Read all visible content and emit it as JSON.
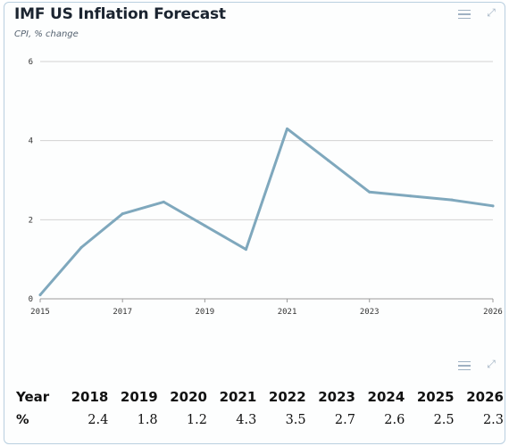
{
  "header": {
    "title": "IMF US Inflation Forecast",
    "subtitle": "CPI, % change"
  },
  "icons": {
    "top_menu": "hamburger-menu-icon",
    "top_expand": "expand-icon",
    "table_menu": "hamburger-menu-icon",
    "table_expand": "expand-icon"
  },
  "colors": {
    "line": "#7fa8bd",
    "grid": "#d2d2d2",
    "axis_text": "#333333"
  },
  "chart_data": {
    "type": "line",
    "x": [
      2015,
      2016,
      2017,
      2018,
      2019,
      2020,
      2021,
      2022,
      2023,
      2024,
      2025,
      2026
    ],
    "y": [
      0.1,
      1.3,
      2.15,
      2.45,
      1.85,
      1.25,
      4.3,
      3.5,
      2.7,
      2.6,
      2.5,
      2.35
    ],
    "xticks": [
      "2015",
      "2017",
      "2019",
      "2021",
      "2023",
      "2026"
    ],
    "xtick_values": [
      2015,
      2017,
      2019,
      2021,
      2023,
      2026
    ],
    "yticks": [
      "0",
      "2",
      "4",
      "6"
    ],
    "ytick_values": [
      0,
      2,
      4,
      6
    ],
    "xlim": [
      2015,
      2026
    ],
    "ylim": [
      0,
      6
    ],
    "grid": true
  },
  "table": {
    "header_label": "Year",
    "row_label": "%",
    "years": [
      "2018",
      "2019",
      "2020",
      "2021",
      "2022",
      "2023",
      "2024",
      "2025",
      "2026"
    ],
    "values": [
      "2.4",
      "1.8",
      "1.2",
      "4.3",
      "3.5",
      "2.7",
      "2.6",
      "2.5",
      "2.3"
    ]
  }
}
